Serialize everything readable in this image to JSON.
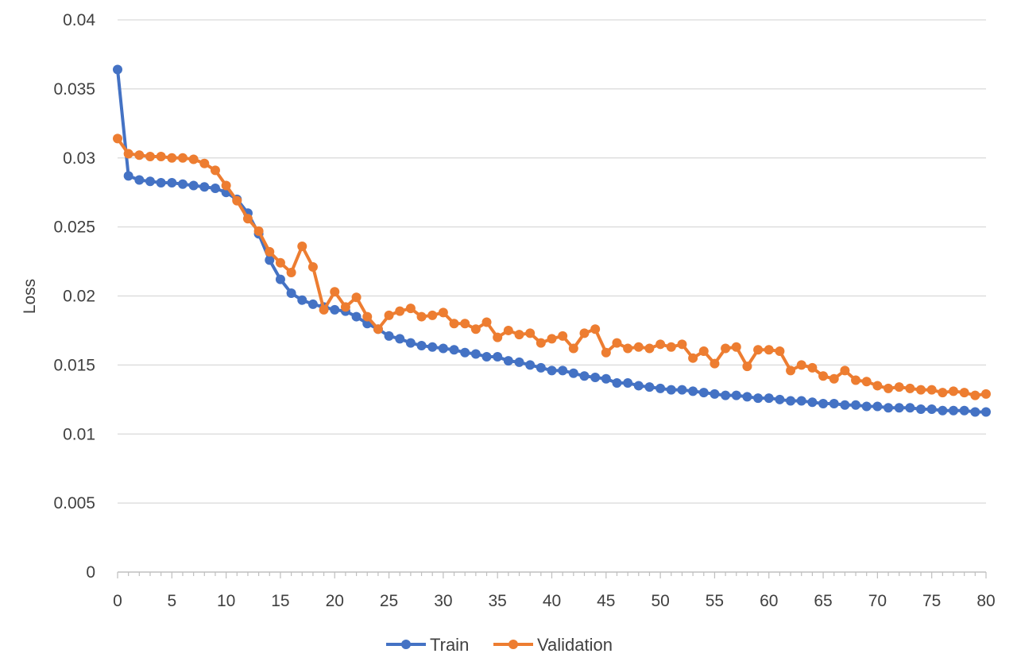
{
  "chart_data": {
    "type": "line",
    "title": "",
    "xlabel": "",
    "ylabel": "Loss",
    "xlim": [
      0,
      80
    ],
    "ylim": [
      0,
      0.04
    ],
    "x_ticks": [
      0,
      5,
      10,
      15,
      20,
      25,
      30,
      35,
      40,
      45,
      50,
      55,
      60,
      65,
      70,
      75,
      80
    ],
    "y_ticks": [
      0,
      0.005,
      0.01,
      0.015,
      0.02,
      0.025,
      0.03,
      0.035,
      0.04
    ],
    "y_tick_labels": [
      "0",
      "0.005",
      "0.01",
      "0.015",
      "0.02",
      "0.025",
      "0.03",
      "0.035",
      "0.04"
    ],
    "grid": "horizontal",
    "legend_position": "bottom",
    "x": [
      0,
      1,
      2,
      3,
      4,
      5,
      6,
      7,
      8,
      9,
      10,
      11,
      12,
      13,
      14,
      15,
      16,
      17,
      18,
      19,
      20,
      21,
      22,
      23,
      24,
      25,
      26,
      27,
      28,
      29,
      30,
      31,
      32,
      33,
      34,
      35,
      36,
      37,
      38,
      39,
      40,
      41,
      42,
      43,
      44,
      45,
      46,
      47,
      48,
      49,
      50,
      51,
      52,
      53,
      54,
      55,
      56,
      57,
      58,
      59,
      60,
      61,
      62,
      63,
      64,
      65,
      66,
      67,
      68,
      69,
      70,
      71,
      72,
      73,
      74,
      75,
      76,
      77,
      78,
      79,
      80
    ],
    "series": [
      {
        "name": "Train",
        "color": "#4472C4",
        "values": [
          0.0364,
          0.0287,
          0.0284,
          0.0283,
          0.0282,
          0.0282,
          0.0281,
          0.028,
          0.0279,
          0.0278,
          0.0275,
          0.027,
          0.026,
          0.0245,
          0.0226,
          0.0212,
          0.0202,
          0.0197,
          0.0194,
          0.0192,
          0.019,
          0.0189,
          0.0185,
          0.018,
          0.0176,
          0.0171,
          0.0169,
          0.0166,
          0.0164,
          0.0163,
          0.0162,
          0.0161,
          0.0159,
          0.0158,
          0.0156,
          0.0156,
          0.0153,
          0.0152,
          0.015,
          0.0148,
          0.0146,
          0.0146,
          0.0144,
          0.0142,
          0.0141,
          0.014,
          0.0137,
          0.0137,
          0.0135,
          0.0134,
          0.0133,
          0.0132,
          0.0132,
          0.0131,
          0.013,
          0.0129,
          0.0128,
          0.0128,
          0.0127,
          0.0126,
          0.0126,
          0.0125,
          0.0124,
          0.0124,
          0.0123,
          0.0122,
          0.0122,
          0.0121,
          0.0121,
          0.012,
          0.012,
          0.0119,
          0.0119,
          0.0119,
          0.0118,
          0.0118,
          0.0117,
          0.0117,
          0.0117,
          0.0116,
          0.0116
        ]
      },
      {
        "name": "Validation",
        "color": "#ED7D31",
        "values": [
          0.0314,
          0.0303,
          0.0302,
          0.0301,
          0.0301,
          0.03,
          0.03,
          0.0299,
          0.0296,
          0.0291,
          0.028,
          0.0269,
          0.0256,
          0.0247,
          0.0232,
          0.0224,
          0.0217,
          0.0236,
          0.0221,
          0.019,
          0.0203,
          0.0192,
          0.0199,
          0.0185,
          0.0176,
          0.0186,
          0.0189,
          0.0191,
          0.0185,
          0.0186,
          0.0188,
          0.018,
          0.018,
          0.0176,
          0.0181,
          0.017,
          0.0175,
          0.0172,
          0.0173,
          0.0166,
          0.0169,
          0.0171,
          0.0162,
          0.0173,
          0.0176,
          0.0159,
          0.0166,
          0.0162,
          0.0163,
          0.0162,
          0.0165,
          0.0163,
          0.0165,
          0.0155,
          0.016,
          0.0151,
          0.0162,
          0.0163,
          0.0149,
          0.0161,
          0.0161,
          0.016,
          0.0146,
          0.015,
          0.0148,
          0.0142,
          0.014,
          0.0146,
          0.0139,
          0.0138,
          0.0135,
          0.0133,
          0.0134,
          0.0133,
          0.0132,
          0.0132,
          0.013,
          0.0131,
          0.013,
          0.0128,
          0.0129
        ]
      }
    ]
  }
}
